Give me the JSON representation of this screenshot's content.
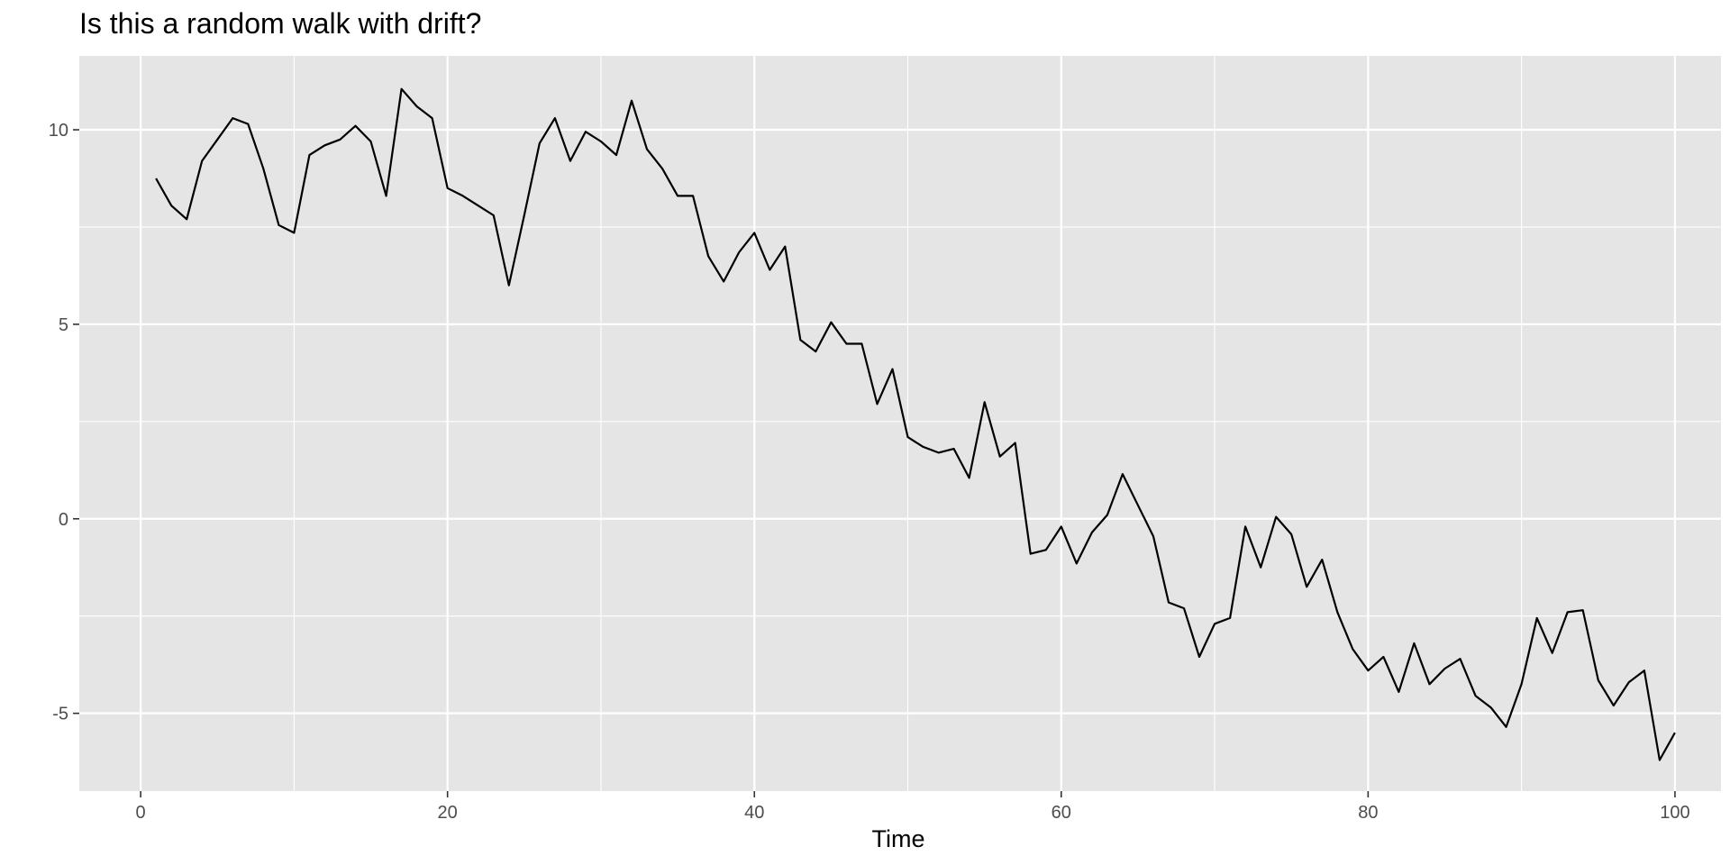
{
  "chart_data": {
    "type": "line",
    "title": "Is this a random walk with drift?",
    "xlabel": "Time",
    "ylabel": "",
    "xlim": [
      -4,
      103
    ],
    "ylim": [
      -7.0,
      11.9
    ],
    "xticks": [
      0,
      20,
      40,
      60,
      80,
      100
    ],
    "yticks": [
      -5,
      0,
      5,
      10
    ],
    "grid": true,
    "colors": {
      "panel": "#e5e5e5",
      "grid": "#ffffff",
      "line": "#000000",
      "tick_text": "#4d4d4d"
    },
    "x": [
      1,
      2,
      3,
      4,
      5,
      6,
      7,
      8,
      9,
      10,
      11,
      12,
      13,
      14,
      15,
      16,
      17,
      18,
      19,
      20,
      21,
      22,
      23,
      24,
      25,
      26,
      27,
      28,
      29,
      30,
      31,
      32,
      33,
      34,
      35,
      36,
      37,
      38,
      39,
      40,
      41,
      42,
      43,
      44,
      45,
      46,
      47,
      48,
      49,
      50,
      51,
      52,
      53,
      54,
      55,
      56,
      57,
      58,
      59,
      60,
      61,
      62,
      63,
      64,
      65,
      66,
      67,
      68,
      69,
      70,
      71,
      72,
      73,
      74,
      75,
      76,
      77,
      78,
      79,
      80,
      81,
      82,
      83,
      84,
      85,
      86,
      87,
      88,
      89,
      90,
      91,
      92,
      93,
      94,
      95,
      96,
      97,
      98,
      99,
      100
    ],
    "y": [
      8.75,
      8.05,
      7.7,
      9.2,
      9.75,
      10.3,
      10.15,
      9.0,
      7.55,
      7.35,
      9.35,
      9.6,
      9.75,
      10.1,
      9.7,
      8.3,
      11.05,
      10.6,
      10.3,
      8.5,
      8.3,
      8.05,
      7.8,
      6.0,
      7.8,
      9.65,
      10.3,
      9.2,
      9.95,
      9.7,
      9.35,
      10.75,
      9.5,
      9.0,
      8.3,
      8.3,
      6.75,
      6.1,
      6.85,
      7.35,
      6.4,
      7.0,
      4.6,
      4.3,
      5.05,
      4.5,
      4.5,
      2.95,
      3.85,
      2.1,
      1.85,
      1.7,
      1.8,
      1.05,
      3.0,
      1.6,
      1.95,
      -0.9,
      -0.8,
      -0.2,
      -1.15,
      -0.35,
      0.1,
      1.15,
      0.35,
      -0.45,
      -2.15,
      -2.3,
      -3.55,
      -2.7,
      -2.55,
      -0.2,
      -1.25,
      0.05,
      -0.4,
      -1.75,
      -1.05,
      -2.4,
      -3.35,
      -3.9,
      -3.55,
      -4.45,
      -3.2,
      -4.25,
      -3.85,
      -3.6,
      -4.55,
      -4.85,
      -5.35,
      -4.25,
      -2.55,
      -3.45,
      -2.4,
      -2.35,
      -4.15,
      -4.8,
      -4.2,
      -3.9,
      -6.2,
      -5.5
    ]
  }
}
